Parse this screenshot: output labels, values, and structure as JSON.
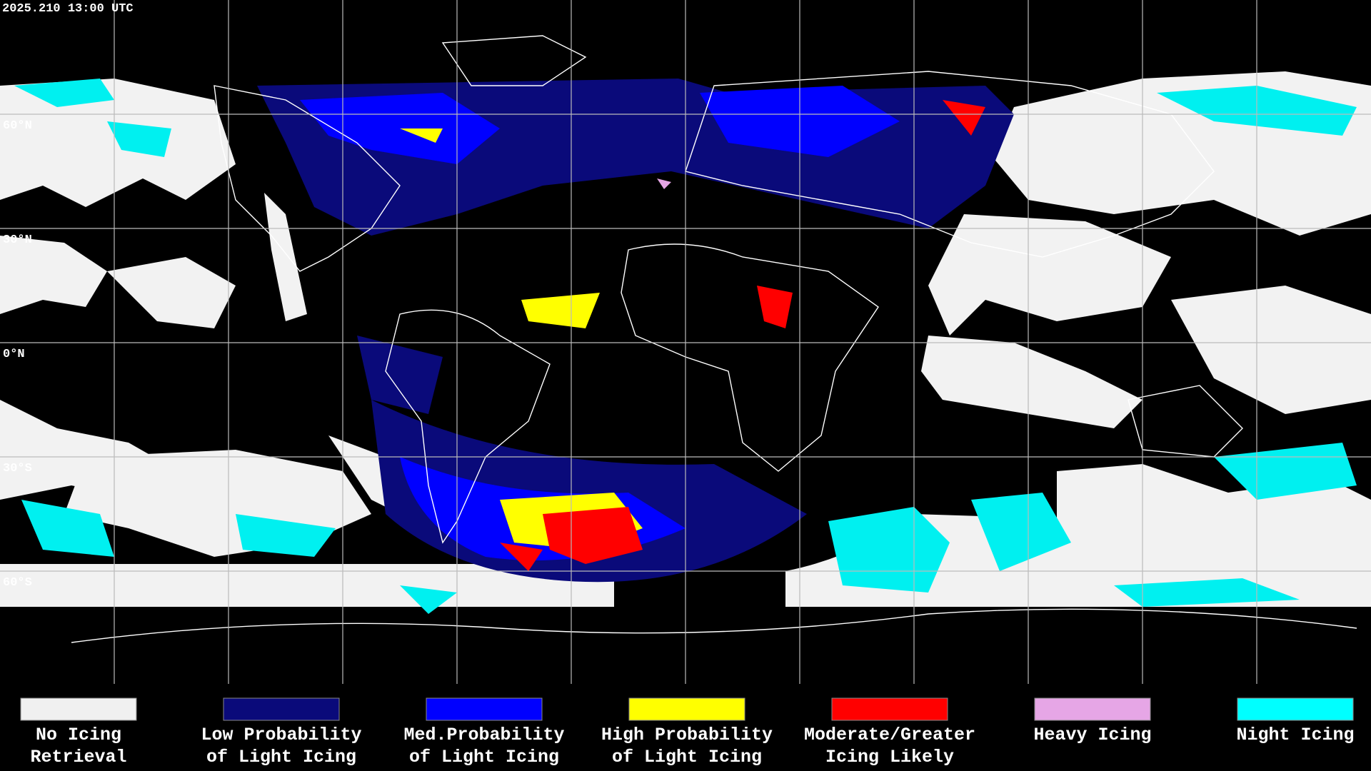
{
  "header": {
    "timestamp": "2025.210 13:00 UTC"
  },
  "map": {
    "latitude_labels": [
      "60°N",
      "30°N",
      "0°N",
      "30°S",
      "60°S"
    ]
  },
  "legend": {
    "items": [
      {
        "lines": [
          "No Icing",
          "Retrieval"
        ],
        "color": "#f0f0f0"
      },
      {
        "lines": [
          "Low Probability",
          "of Light Icing"
        ],
        "color": "#0a0a7a"
      },
      {
        "lines": [
          "Med.Probability",
          "of Light Icing"
        ],
        "color": "#0000ff"
      },
      {
        "lines": [
          "High Probability",
          "of Light Icing"
        ],
        "color": "#ffff00"
      },
      {
        "lines": [
          "Moderate/Greater",
          "Icing Likely"
        ],
        "color": "#ff0000"
      },
      {
        "lines": [
          "Heavy Icing"
        ],
        "color": "#e6a6e6"
      },
      {
        "lines": [
          "Night Icing"
        ],
        "color": "#00ffff"
      }
    ]
  }
}
